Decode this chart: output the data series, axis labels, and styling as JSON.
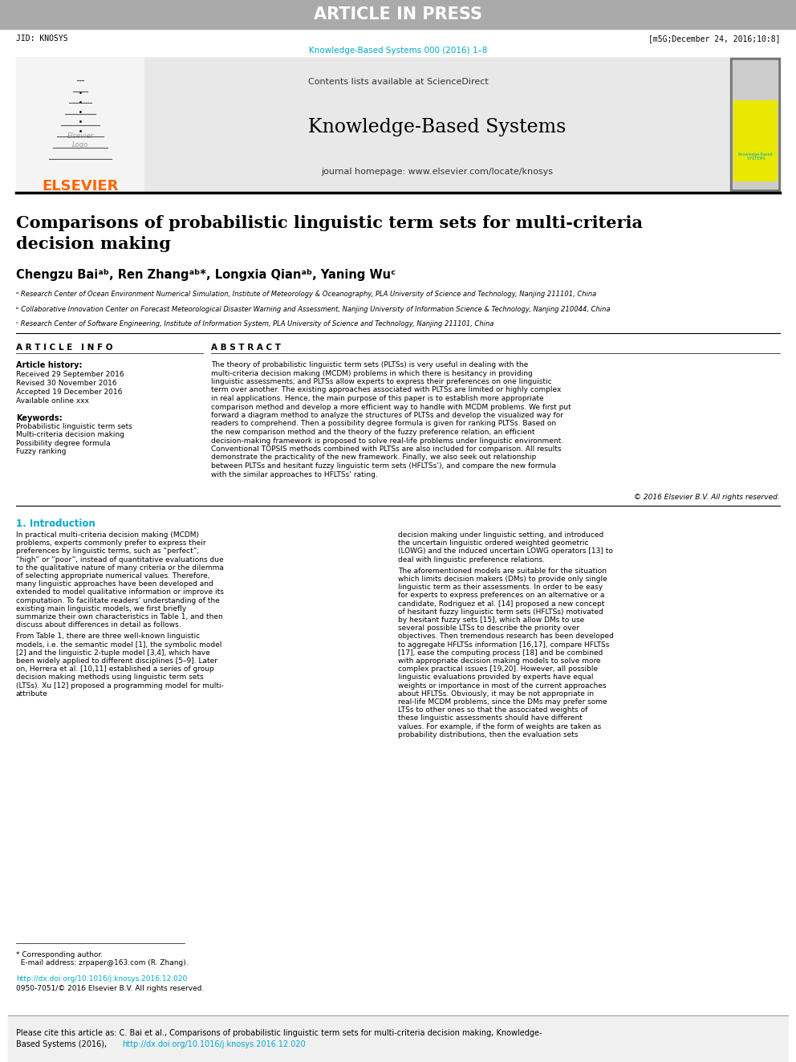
{
  "fig_width": 9.92,
  "fig_height": 13.23,
  "bg_color": "#ffffff",
  "header_bar_color": "#aaaaaa",
  "header_text": "ARTICLE IN PRESS",
  "header_text_color": "#ffffff",
  "jid_left": "JID: KNOSYS",
  "jid_right": "[m5G;December 24, 2016;10:8]",
  "journal_ref_color": "#00aacc",
  "journal_ref": "Knowledge-Based Systems 000 (2016) 1–8",
  "elsevier_color": "#ff6600",
  "elsevier_text": "ELSEVIER",
  "journal_title": "Knowledge-Based Systems",
  "contents_text": "Contents lists available at ",
  "science_direct": "ScienceDirect",
  "journal_homepage_text": "journal homepage: ",
  "journal_url": "www.elsevier.com/locate/knosys",
  "link_color": "#00aacc",
  "header_box_bg": "#e8e8e8",
  "article_title": "Comparisons of probabilistic linguistic term sets for multi-criteria\ndecision making",
  "article_title_color": "#000000",
  "authors_full": "Chengzu Baiᵃᵇ, Ren Zhangᵃᵇ*, Longxia Qianᵃᵇ, Yaning Wuᶜ",
  "affil_a": "ᵃ Research Center of Ocean Environment Numerical Simulation, Institute of Meteorology & Oceanography, PLA University of Science and Technology, Nanjing 211101, China",
  "affil_b": "ᵇ Collaborative Innovation Center on Forecast Meteorological Disaster Warning and Assessment, Nanjing University of Information Science & Technology, Nanjing 210044, China",
  "affil_c": "ᶜ Research Center of Software Engineering, Institute of Information System, PLA University of Science and Technology, Nanjing 211101, China",
  "article_info_title": "A R T I C L E   I N F O",
  "abstract_title": "A B S T R A C T",
  "article_history_title": "Article history:",
  "received": "Received 29 September 2016",
  "revised": "Revised 30 November 2016",
  "accepted": "Accepted 19 December 2016",
  "available": "Available online xxx",
  "keywords_title": "Keywords:",
  "keywords": "Probabilistic linguistic term sets\nMulti-criteria decision making\nPossibility degree formula\nFuzzy ranking",
  "abstract_text": "The theory of probabilistic linguistic term sets (PLTSs) is very useful in dealing with the multi-criteria decision making (MCDM) problems in which there is hesitancy in providing linguistic assessments; and PLTSs allow experts to express their preferences on one linguistic term over another. The existing approaches associated with PLTSs are limited or highly complex in real applications. Hence, the main purpose of this paper is to establish more appropriate comparison method and develop a more efficient way to handle with MCDM problems. We first put forward a diagram method to analyze the structures of PLTSs and develop the visualized way for readers to comprehend. Then a possibility degree formula is given for ranking PLTSs. Based on the new comparison method and the theory of the fuzzy preference relation, an efficient decision-making framework is proposed to solve real-life problems under linguistic environment. Conventional TOPSIS methods combined with PLTSs are also included for comparison. All results demonstrate the practicality of the new framework. Finally, we also seek out relationship between PLTSs and hesitant fuzzy linguistic term sets (HFLTSs’), and compare the new formula with the similar approaches to HFLTSs’ rating.",
  "copyright": "© 2016 Elsevier B.V. All rights reserved.",
  "section1_title": "1. Introduction",
  "intro_col1_p1": "In practical multi-criteria decision making (MCDM) problems, experts commonly prefer to express their preferences by linguistic terms, such as “perfect”, “high” or “poor”, instead of quantitative evaluations due to the qualitative nature of many criteria or the dilemma of selecting appropriate numerical values. Therefore, many linguistic approaches have been developed and extended to model qualitative information or improve its computation. To facilitate readers’ understanding of the existing main linguistic models, we first briefly summarize their own characteristics in Table 1, and then discuss about differences in detail as follows.",
  "intro_col1_p2": "From Table 1, there are three well-known linguistic models, i.e. the semantic model [1], the symbolic model [2] and the linguistic 2-tuple model [3,4], which have been widely applied to different disciplines [5–9]. Later on, Herrera et al. [10,11] established a series of group decision making methods using linguistic term sets (LTSs). Xu [12] proposed a programming model for multi-attribute",
  "intro_col2_p1": "decision making under linguistic setting, and introduced the uncertain linguistic ordered weighted geometric (LOWG) and the induced uncertain LOWG operators [13] to deal with linguistic preference relations.",
  "intro_col2_p2": "The aforementioned models are suitable for the situation which limits decision makers (DMs) to provide only single linguistic term as their assessments. In order to be easy for experts to express preferences on an alternative or a candidate, Rodriguez et al. [14] proposed a new concept of hesitant fuzzy linguistic term sets (HFLTSs) motivated by hesitant fuzzy sets [15], which allow DMs to use several possible LTSs to describe the priority over objectives. Then tremendous research has been developed to aggregate HFLTSs information [16,17], compare HFLTSs [17], ease the computing process [18] and be combined with appropriate decision making models to solve more complex practical issues [19,20]. However, all possible linguistic evaluations provided by experts have equal weights or importance in most of the current approaches about HFLTSs. Obviously, it may be not appropriate in real-life MCDM problems, since the DMs may prefer some LTSs to other ones so that the associated weights of these linguistic assessments should have different values. For example, if the form of weights are taken as probability distributions, then the evaluation sets",
  "footnote_text": "* Corresponding author.\n  E-mail address: zrpaper@163.com (R. Zhang).",
  "footer_doi": "http://dx.doi.org/10.1016/j.knosys.2016.12.020",
  "footer_issn": "0950-7051/© 2016 Elsevier B.V. All rights reserved.",
  "citation_box_line1": "Please cite this article as: C. Bai et al., Comparisons of probabilistic linguistic term sets for multi-criteria decision making, Knowledge-",
  "citation_box_line2": "Based Systems (2016), http://dx.doi.org/10.1016/j.knosys.2016.12.020",
  "citation_box_bg": "#f0f0f0"
}
